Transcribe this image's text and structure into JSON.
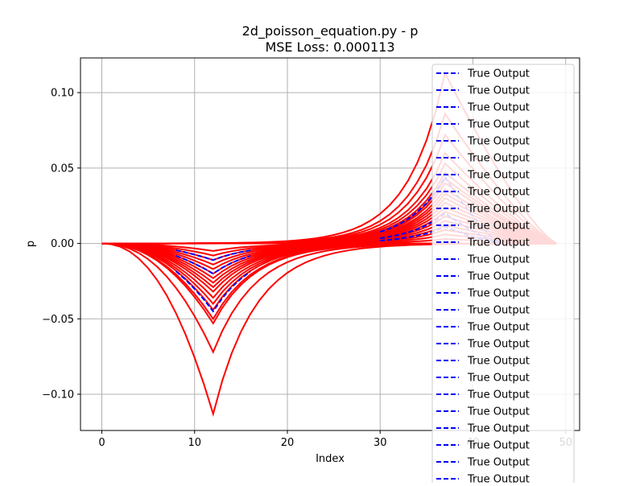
{
  "chart_data": {
    "type": "line",
    "title": "2d_poisson_equation.py - p",
    "subtitle": "MSE Loss: 0.000113",
    "xlabel": "Index",
    "ylabel": "p",
    "xlim": [
      -2.3,
      51.5
    ],
    "ylim": [
      -0.124,
      0.123
    ],
    "x_ticks": [
      0,
      10,
      20,
      30,
      40,
      50
    ],
    "x_tick_labels": [
      "0",
      "10",
      "20",
      "30",
      "40",
      "50"
    ],
    "y_ticks": [
      -0.1,
      -0.05,
      0.0,
      0.05,
      0.1
    ],
    "y_tick_labels": [
      "−0.10",
      "−0.05",
      "0.00",
      "0.05",
      "0.10"
    ],
    "grid": true,
    "legend_position": "right",
    "legend_entries": [
      "True Output",
      "True Output",
      "True Output",
      "True Output",
      "True Output",
      "True Output",
      "True Output",
      "True Output",
      "True Output",
      "True Output",
      "True Output",
      "True Output",
      "True Output",
      "True Output",
      "True Output",
      "True Output",
      "True Output",
      "True Output",
      "True Output",
      "True Output",
      "True Output",
      "True Output",
      "True Output",
      "True Output",
      "True Output",
      "True Output"
    ],
    "colors": {
      "true_output": "#0000ff",
      "predicted": "#ff0000",
      "grid": "#b0b0b0"
    },
    "x_range": [
      0,
      49
    ],
    "negative_peak_x": 12,
    "positive_peak_x": 37,
    "predicted_series": {
      "negative_peaks": [
        -0.113,
        -0.072,
        -0.053,
        -0.05,
        -0.044,
        -0.04,
        -0.036,
        -0.032,
        -0.029,
        -0.026,
        -0.023,
        -0.02,
        -0.017,
        -0.014,
        -0.011,
        -0.008,
        -0.005
      ],
      "positive_peaks": [
        0.113,
        0.086,
        0.072,
        0.06,
        0.053,
        0.047,
        0.043,
        0.04,
        0.036,
        0.033,
        0.03,
        0.027,
        0.024,
        0.021,
        0.018,
        0.015,
        0.012,
        0.009,
        0.006,
        0.003
      ]
    },
    "true_series": {
      "negative_peaks": [
        -0.045,
        -0.02,
        -0.011
      ],
      "positive_peaks": [
        0.044,
        0.02,
        0.011
      ]
    }
  }
}
